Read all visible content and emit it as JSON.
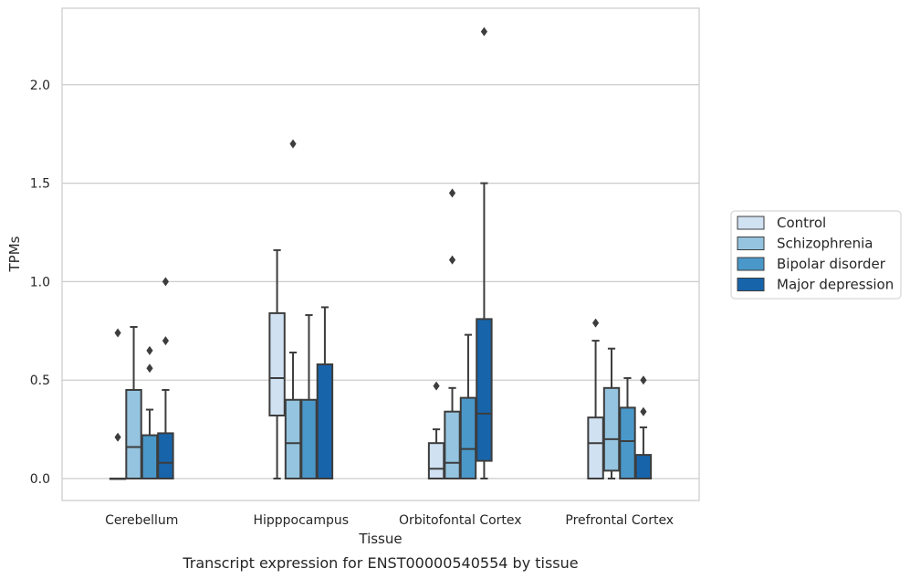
{
  "caption": "Transcript expression for ENST00000540554 by tissue",
  "chart_data": {
    "type": "box",
    "xlabel": "Tissue",
    "ylabel": "TPMs",
    "ylim": [
      -0.11,
      2.39
    ],
    "yticks": [
      0.0,
      0.5,
      1.0,
      1.5,
      2.0
    ],
    "ytick_labels": [
      "0.0",
      "0.5",
      "1.0",
      "1.5",
      "2.0"
    ],
    "grid": true,
    "legend_position": "right",
    "categories": [
      "Cerebellum",
      "Hipppocampus",
      "Orbitofontal Cortex",
      "Prefrontal Cortex"
    ],
    "series": [
      {
        "name": "Control",
        "color": "#d0e1f2",
        "boxes": [
          {
            "whislo": 0.0,
            "q1": 0.0,
            "med": 0.0,
            "q3": 0.0,
            "whishi": 0.0,
            "fliers": [
              0.21,
              0.74
            ]
          },
          {
            "whislo": 0.0,
            "q1": 0.32,
            "med": 0.51,
            "q3": 0.84,
            "whishi": 1.16,
            "fliers": []
          },
          {
            "whislo": 0.0,
            "q1": 0.0,
            "med": 0.05,
            "q3": 0.18,
            "whishi": 0.25,
            "fliers": [
              0.47
            ]
          },
          {
            "whislo": 0.0,
            "q1": 0.0,
            "med": 0.18,
            "q3": 0.31,
            "whishi": 0.7,
            "fliers": [
              0.79
            ]
          }
        ]
      },
      {
        "name": "Schizophrenia",
        "color": "#94c4df",
        "boxes": [
          {
            "whislo": 0.0,
            "q1": 0.0,
            "med": 0.16,
            "q3": 0.45,
            "whishi": 0.77,
            "fliers": []
          },
          {
            "whislo": 0.0,
            "q1": 0.0,
            "med": 0.18,
            "q3": 0.4,
            "whishi": 0.64,
            "fliers": [
              1.7
            ]
          },
          {
            "whislo": 0.0,
            "q1": 0.0,
            "med": 0.08,
            "q3": 0.34,
            "whishi": 0.46,
            "fliers": [
              1.11,
              1.45
            ]
          },
          {
            "whislo": 0.0,
            "q1": 0.04,
            "med": 0.2,
            "q3": 0.46,
            "whishi": 0.66,
            "fliers": []
          }
        ]
      },
      {
        "name": "Bipolar disorder",
        "color": "#4a98c9",
        "boxes": [
          {
            "whislo": 0.0,
            "q1": 0.0,
            "med": 0.0,
            "q3": 0.22,
            "whishi": 0.35,
            "fliers": [
              0.56,
              0.65
            ]
          },
          {
            "whislo": 0.0,
            "q1": 0.0,
            "med": 0.0,
            "q3": 0.4,
            "whishi": 0.83,
            "fliers": []
          },
          {
            "whislo": 0.0,
            "q1": 0.0,
            "med": 0.15,
            "q3": 0.41,
            "whishi": 0.73,
            "fliers": []
          },
          {
            "whislo": 0.0,
            "q1": 0.0,
            "med": 0.19,
            "q3": 0.36,
            "whishi": 0.51,
            "fliers": []
          }
        ]
      },
      {
        "name": "Major depression",
        "color": "#1764ab",
        "boxes": [
          {
            "whislo": 0.0,
            "q1": 0.0,
            "med": 0.08,
            "q3": 0.23,
            "whishi": 0.45,
            "fliers": [
              0.7,
              1.0
            ]
          },
          {
            "whislo": 0.0,
            "q1": 0.0,
            "med": 0.0,
            "q3": 0.58,
            "whishi": 0.87,
            "fliers": []
          },
          {
            "whislo": 0.0,
            "q1": 0.09,
            "med": 0.33,
            "q3": 0.81,
            "whishi": 1.5,
            "fliers": [
              2.27
            ]
          },
          {
            "whislo": 0.0,
            "q1": 0.0,
            "med": 0.0,
            "q3": 0.12,
            "whishi": 0.26,
            "fliers": [
              0.34,
              0.5
            ]
          }
        ]
      }
    ]
  }
}
